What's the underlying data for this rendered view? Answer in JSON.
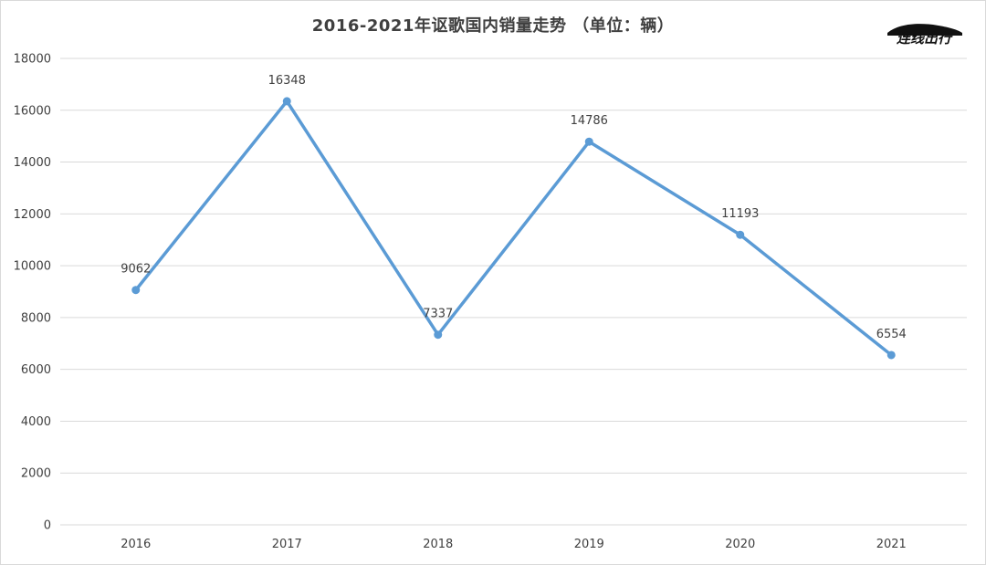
{
  "chart_data": {
    "type": "line",
    "title": "2016-2021年讴歌国内销量走势 （单位：辆）",
    "xlabel": "",
    "ylabel": "",
    "categories": [
      "2016",
      "2017",
      "2018",
      "2019",
      "2020",
      "2021"
    ],
    "series": [
      {
        "values": [
          9062,
          16348,
          7337,
          14786,
          11193,
          6554
        ],
        "color": "#5b9bd5"
      }
    ],
    "ylim": [
      0,
      18000
    ],
    "yticks": [
      0,
      2000,
      4000,
      6000,
      8000,
      10000,
      12000,
      14000,
      16000,
      18000
    ],
    "grid": true,
    "data_labels": true,
    "legend": "none"
  },
  "logo": {
    "text": "连线出行",
    "icon": "car-silhouette-icon"
  },
  "colors": {
    "line": "#5b9bd5",
    "grid": "#d9d9d9",
    "text": "#404040"
  }
}
